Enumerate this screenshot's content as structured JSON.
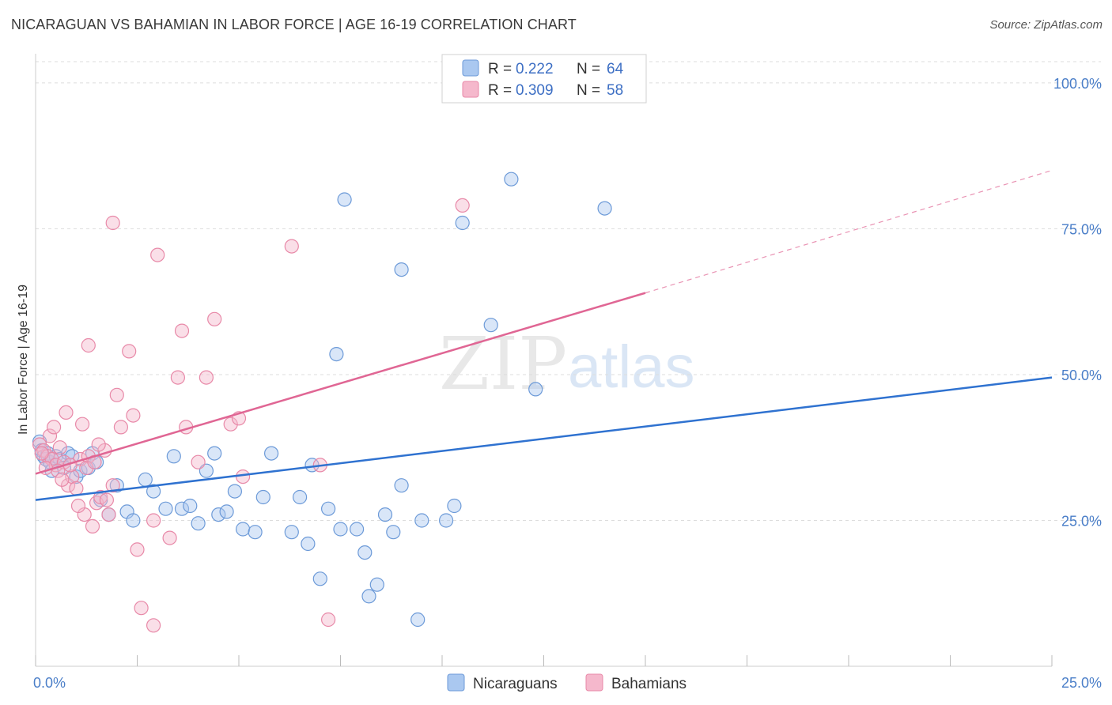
{
  "title": "NICARAGUAN VS BAHAMIAN IN LABOR FORCE | AGE 16-19 CORRELATION CHART",
  "source": "Source: ZipAtlas.com",
  "watermark": {
    "zip": "ZIP",
    "atlas": "atlas"
  },
  "colors": {
    "blue_fill": "#aac8f0",
    "blue_stroke": "#6c9ad8",
    "blue_line": "#2f72d0",
    "pink_fill": "#f5b8cc",
    "pink_stroke": "#e889a8",
    "pink_line": "#e06694",
    "grid": "#dddddd",
    "tick_text": "#4a7ec8"
  },
  "legend": {
    "rows": [
      {
        "r_label": "R =",
        "r_value": "0.222",
        "n_label": "N =",
        "n_value": "64"
      },
      {
        "r_label": "R =",
        "r_value": "0.309",
        "n_label": "N =",
        "n_value": "58"
      }
    ]
  },
  "chart_data": {
    "type": "scatter",
    "xlabel": "",
    "ylabel": "In Labor Force | Age 16-19",
    "xlim": [
      0,
      25
    ],
    "ylim": [
      0,
      105
    ],
    "x_tick_labels": [
      {
        "value": 0,
        "label": "0.0%"
      },
      {
        "value": 25,
        "label": "25.0%"
      }
    ],
    "y_tick_labels": [
      {
        "value": 25,
        "label": "25.0%"
      },
      {
        "value": 50,
        "label": "50.0%"
      },
      {
        "value": 75,
        "label": "75.0%"
      },
      {
        "value": 100,
        "label": "100.0%"
      }
    ],
    "grid": true,
    "legend_position": "top-center",
    "series": [
      {
        "name": "Nicaraguans",
        "color": "#aac8f0",
        "trend": {
          "x": [
            0,
            25
          ],
          "y": [
            28.5,
            49.5
          ],
          "dashed_to": null
        },
        "points": [
          {
            "x": 0.1,
            "y": 38.5
          },
          {
            "x": 0.15,
            "y": 37
          },
          {
            "x": 0.2,
            "y": 36
          },
          {
            "x": 0.25,
            "y": 35.5
          },
          {
            "x": 0.3,
            "y": 36.5
          },
          {
            "x": 0.35,
            "y": 35
          },
          {
            "x": 0.4,
            "y": 33.5
          },
          {
            "x": 0.5,
            "y": 36
          },
          {
            "x": 0.6,
            "y": 35.5
          },
          {
            "x": 0.7,
            "y": 34
          },
          {
            "x": 0.8,
            "y": 36.5
          },
          {
            "x": 0.9,
            "y": 36
          },
          {
            "x": 1.0,
            "y": 32.5
          },
          {
            "x": 1.1,
            "y": 33.5
          },
          {
            "x": 1.3,
            "y": 34
          },
          {
            "x": 1.4,
            "y": 36.5
          },
          {
            "x": 1.5,
            "y": 35
          },
          {
            "x": 1.6,
            "y": 28.5
          },
          {
            "x": 1.8,
            "y": 26
          },
          {
            "x": 2.0,
            "y": 31
          },
          {
            "x": 2.25,
            "y": 26.5
          },
          {
            "x": 2.4,
            "y": 25
          },
          {
            "x": 2.7,
            "y": 32
          },
          {
            "x": 2.9,
            "y": 30
          },
          {
            "x": 3.2,
            "y": 27
          },
          {
            "x": 3.4,
            "y": 36
          },
          {
            "x": 3.6,
            "y": 27
          },
          {
            "x": 3.8,
            "y": 27.5
          },
          {
            "x": 4.0,
            "y": 24.5
          },
          {
            "x": 4.2,
            "y": 33.5
          },
          {
            "x": 4.4,
            "y": 36.5
          },
          {
            "x": 4.5,
            "y": 26
          },
          {
            "x": 4.7,
            "y": 26.5
          },
          {
            "x": 4.9,
            "y": 30
          },
          {
            "x": 5.1,
            "y": 23.5
          },
          {
            "x": 5.4,
            "y": 23
          },
          {
            "x": 5.6,
            "y": 29
          },
          {
            "x": 5.8,
            "y": 36.5
          },
          {
            "x": 6.3,
            "y": 23
          },
          {
            "x": 6.5,
            "y": 29
          },
          {
            "x": 6.7,
            "y": 21
          },
          {
            "x": 6.8,
            "y": 34.5
          },
          {
            "x": 7.0,
            "y": 15
          },
          {
            "x": 7.2,
            "y": 27
          },
          {
            "x": 7.5,
            "y": 23.5
          },
          {
            "x": 7.9,
            "y": 23.5
          },
          {
            "x": 7.4,
            "y": 53.5
          },
          {
            "x": 7.6,
            "y": 80
          },
          {
            "x": 8.1,
            "y": 19.5
          },
          {
            "x": 8.2,
            "y": 12
          },
          {
            "x": 8.4,
            "y": 14
          },
          {
            "x": 8.6,
            "y": 26
          },
          {
            "x": 8.8,
            "y": 23
          },
          {
            "x": 9.0,
            "y": 31
          },
          {
            "x": 9.0,
            "y": 68
          },
          {
            "x": 9.5,
            "y": 25
          },
          {
            "x": 9.4,
            "y": 8
          },
          {
            "x": 10.1,
            "y": 25
          },
          {
            "x": 10.3,
            "y": 27.5
          },
          {
            "x": 10.5,
            "y": 76
          },
          {
            "x": 11.2,
            "y": 58.5
          },
          {
            "x": 11.7,
            "y": 83.5
          },
          {
            "x": 12.3,
            "y": 47.5
          },
          {
            "x": 14.0,
            "y": 78.5
          }
        ]
      },
      {
        "name": "Bahamians",
        "color": "#f5b8cc",
        "trend": {
          "x": [
            0,
            15
          ],
          "y": [
            33,
            64
          ],
          "dashed_to": {
            "x": 25,
            "y": 85
          }
        },
        "points": [
          {
            "x": 0.1,
            "y": 38
          },
          {
            "x": 0.2,
            "y": 37
          },
          {
            "x": 0.3,
            "y": 36
          },
          {
            "x": 0.4,
            "y": 35.5
          },
          {
            "x": 0.5,
            "y": 34.5
          },
          {
            "x": 0.6,
            "y": 37.5
          },
          {
            "x": 0.7,
            "y": 35
          },
          {
            "x": 0.8,
            "y": 31
          },
          {
            "x": 0.9,
            "y": 32.5
          },
          {
            "x": 1.0,
            "y": 30.5
          },
          {
            "x": 1.1,
            "y": 35.5
          },
          {
            "x": 1.2,
            "y": 26
          },
          {
            "x": 1.3,
            "y": 36
          },
          {
            "x": 1.4,
            "y": 24
          },
          {
            "x": 1.5,
            "y": 28
          },
          {
            "x": 1.6,
            "y": 29
          },
          {
            "x": 1.7,
            "y": 37
          },
          {
            "x": 1.8,
            "y": 26
          },
          {
            "x": 1.9,
            "y": 31
          },
          {
            "x": 2.0,
            "y": 46.5
          },
          {
            "x": 2.1,
            "y": 41
          },
          {
            "x": 2.3,
            "y": 54
          },
          {
            "x": 2.4,
            "y": 43
          },
          {
            "x": 2.5,
            "y": 20
          },
          {
            "x": 2.6,
            "y": 10
          },
          {
            "x": 2.9,
            "y": 7
          },
          {
            "x": 2.9,
            "y": 25
          },
          {
            "x": 3.0,
            "y": 70.5
          },
          {
            "x": 3.3,
            "y": 22
          },
          {
            "x": 3.5,
            "y": 49.5
          },
          {
            "x": 3.7,
            "y": 41
          },
          {
            "x": 4.0,
            "y": 35
          },
          {
            "x": 4.2,
            "y": 49.5
          },
          {
            "x": 4.4,
            "y": 59.5
          },
          {
            "x": 4.8,
            "y": 41.5
          },
          {
            "x": 5.0,
            "y": 42.5
          },
          {
            "x": 5.1,
            "y": 32.5
          },
          {
            "x": 1.3,
            "y": 55
          },
          {
            "x": 1.9,
            "y": 76
          },
          {
            "x": 3.6,
            "y": 57.5
          },
          {
            "x": 6.3,
            "y": 72
          },
          {
            "x": 7.0,
            "y": 34.5
          },
          {
            "x": 7.2,
            "y": 8
          },
          {
            "x": 10.5,
            "y": 79
          },
          {
            "x": 0.35,
            "y": 39.5
          },
          {
            "x": 0.45,
            "y": 41
          },
          {
            "x": 0.75,
            "y": 43.5
          },
          {
            "x": 1.15,
            "y": 41.5
          },
          {
            "x": 0.55,
            "y": 33.5
          },
          {
            "x": 0.65,
            "y": 32
          },
          {
            "x": 1.05,
            "y": 27.5
          },
          {
            "x": 1.25,
            "y": 34
          },
          {
            "x": 1.45,
            "y": 35
          },
          {
            "x": 1.75,
            "y": 28.5
          },
          {
            "x": 0.15,
            "y": 36.5
          },
          {
            "x": 0.25,
            "y": 34
          },
          {
            "x": 0.85,
            "y": 34.5
          },
          {
            "x": 1.55,
            "y": 38
          }
        ]
      }
    ]
  }
}
